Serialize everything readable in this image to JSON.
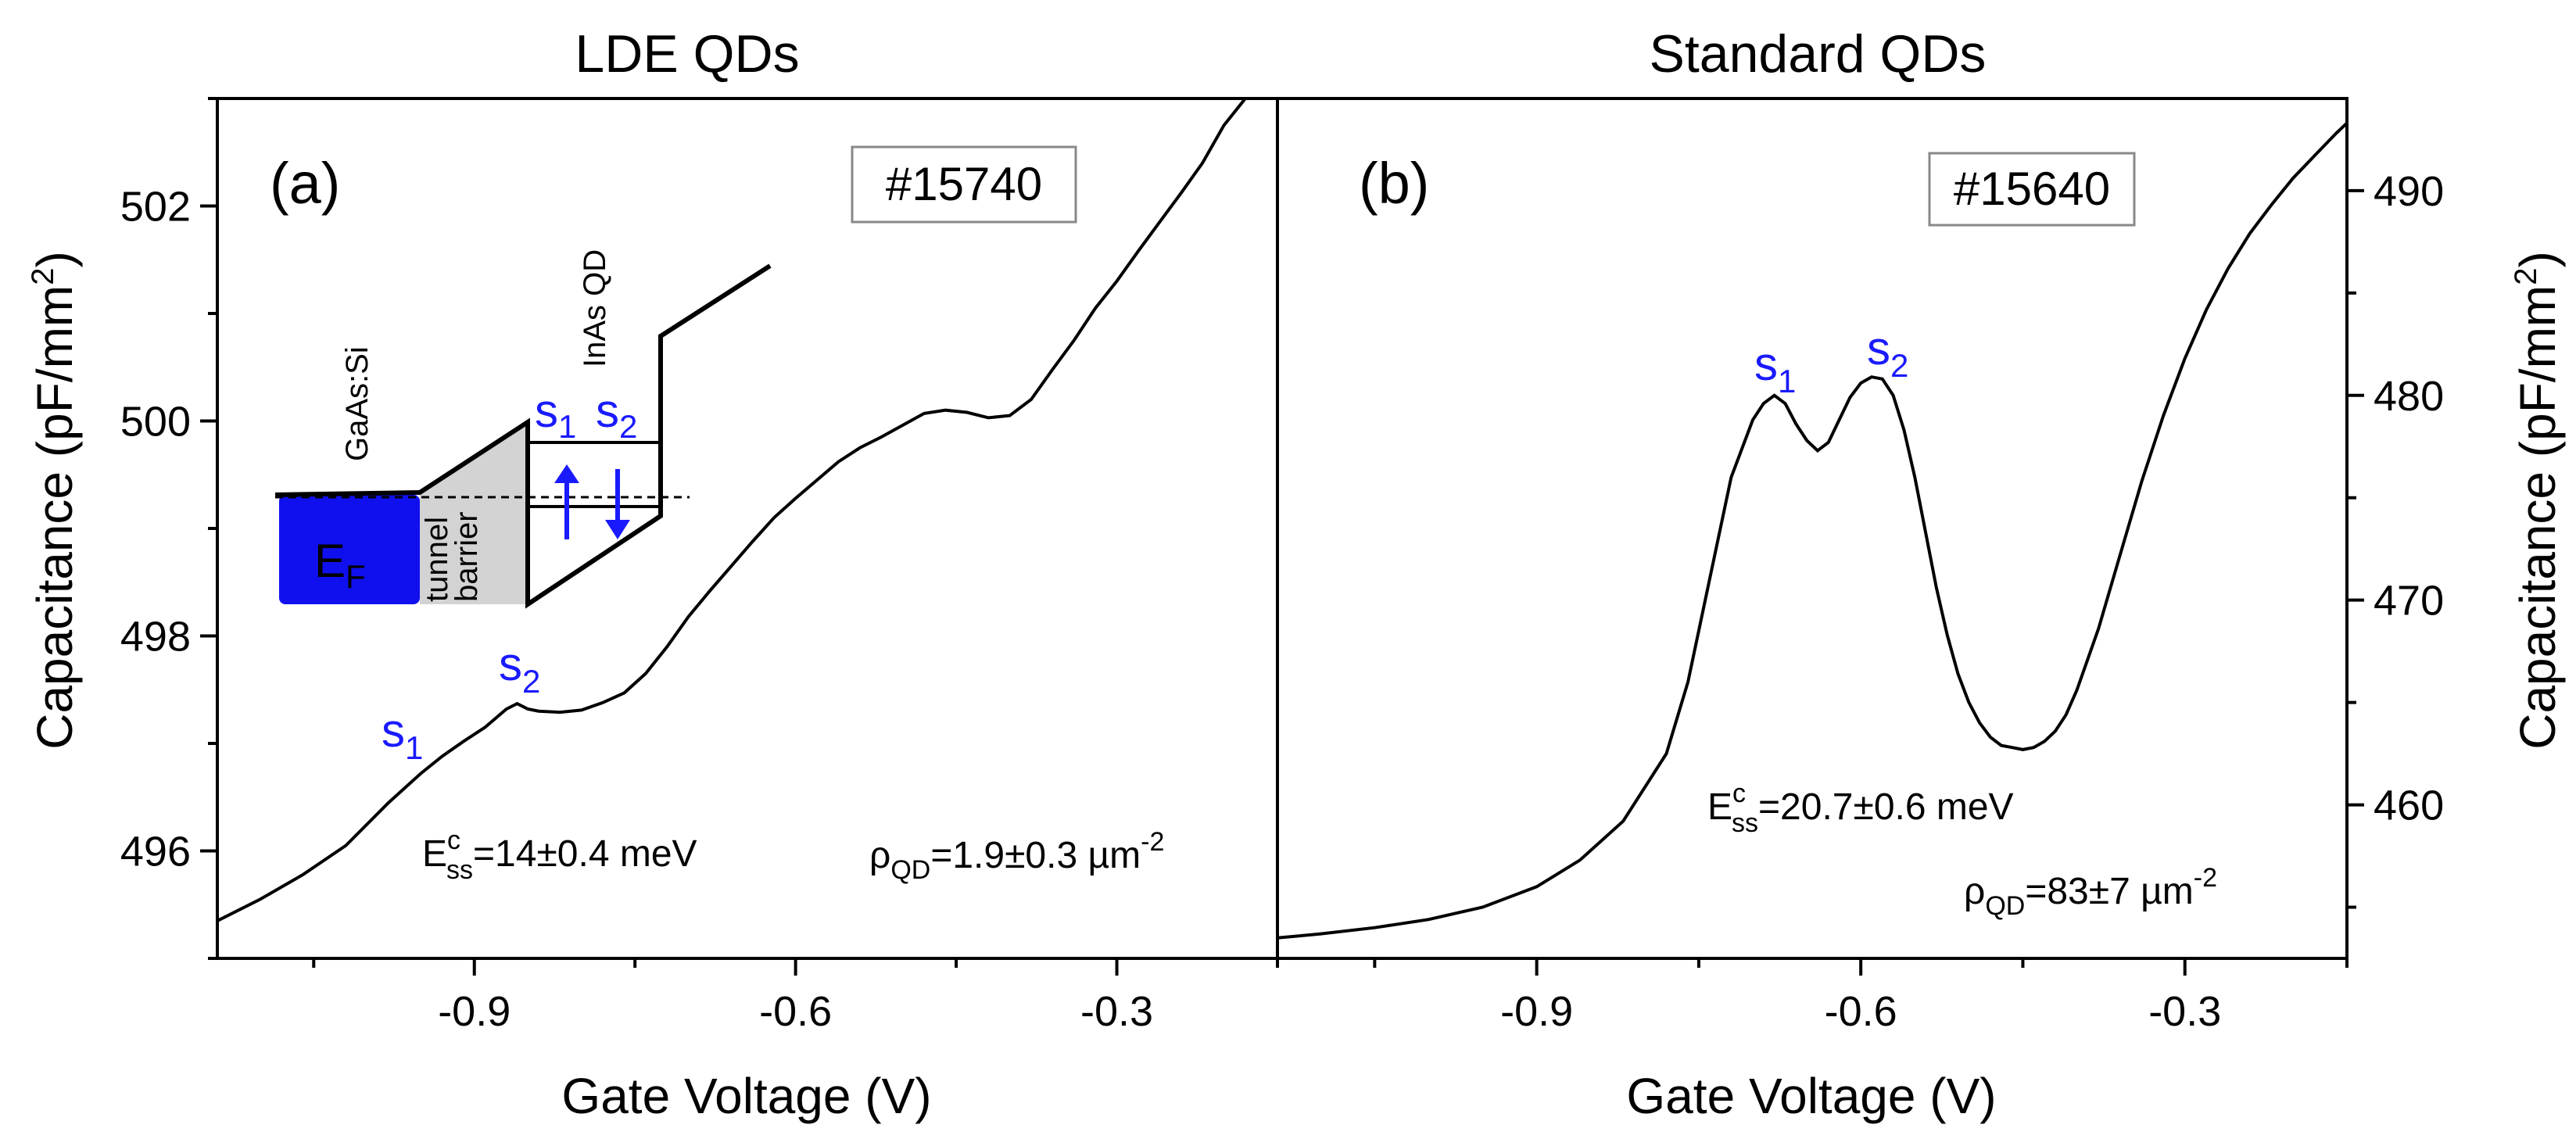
{
  "chart_data": [
    {
      "type": "line",
      "panel_label": "(a)",
      "title": "LDE QDs",
      "sample_id": "#15740",
      "xlabel": "Gate Voltage (V)",
      "ylabel": "Capacitance (pF/mm",
      "ylabel_sup": "2",
      "ylabel_close": ")",
      "xlim": [
        -1.14,
        -0.15
      ],
      "ylim": [
        495,
        503
      ],
      "x_ticks": [
        -0.9,
        -0.6,
        -0.3
      ],
      "x_tick_labels": [
        "-0.9",
        "-0.6",
        "-0.3"
      ],
      "y_ticks": [
        496,
        498,
        500,
        502
      ],
      "y_tick_labels": [
        "496",
        "498",
        "500",
        "502"
      ],
      "series": [
        {
          "name": "LDE QDs capacitance",
          "x": [
            -1.14,
            -1.1,
            -1.06,
            -1.02,
            -0.98,
            -0.95,
            -0.93,
            -0.91,
            -0.89,
            -0.87,
            -0.86,
            -0.85,
            -0.84,
            -0.82,
            -0.8,
            -0.78,
            -0.76,
            -0.74,
            -0.72,
            -0.7,
            -0.68,
            -0.66,
            -0.64,
            -0.62,
            -0.6,
            -0.58,
            -0.56,
            -0.54,
            -0.52,
            -0.5,
            -0.48,
            -0.46,
            -0.44,
            -0.42,
            -0.4,
            -0.38,
            -0.36,
            -0.34,
            -0.32,
            -0.3,
            -0.28,
            -0.26,
            -0.24,
            -0.22,
            -0.2,
            -0.18
          ],
          "values": [
            495.35,
            495.55,
            495.78,
            496.05,
            496.45,
            496.72,
            496.88,
            497.02,
            497.15,
            497.32,
            497.37,
            497.32,
            497.3,
            497.29,
            497.31,
            497.38,
            497.47,
            497.65,
            497.9,
            498.18,
            498.42,
            498.65,
            498.88,
            499.1,
            499.28,
            499.45,
            499.62,
            499.75,
            499.85,
            499.96,
            500.07,
            500.1,
            500.08,
            500.03,
            500.05,
            500.2,
            500.48,
            500.75,
            501.05,
            501.3,
            501.58,
            501.85,
            502.12,
            502.4,
            502.75,
            503.0
          ]
        }
      ],
      "annotations": {
        "peak_s1": "s",
        "peak_s1_sub": "1",
        "peak_s2": "s",
        "peak_s2_sub": "2",
        "charging_energy_main": "E",
        "charging_energy_sup": "c",
        "charging_energy_sub": "ss",
        "charging_energy_value": "=14±0.4 meV",
        "density_main": "ρ",
        "density_sub": "QD",
        "density_value": "=1.9±0.3 µm",
        "density_sup": "-2"
      },
      "inset": {
        "gaas_label": "GaAs:Si",
        "barrier_label_1": "tunnel",
        "barrier_label_2": "barrier",
        "qd_label": "InAs QD",
        "fermi_main": "E",
        "fermi_sub": "F",
        "level_s1": "s",
        "level_s1_sub": "1",
        "level_s2": "s",
        "level_s2_sub": "2",
        "fermi_fill": "#1010ee",
        "barrier_fill": "#d3d3d3",
        "arrow_color": "#1a1aff"
      }
    },
    {
      "type": "line",
      "panel_label": "(b)",
      "title": "Standard QDs",
      "sample_id": "#15640",
      "xlabel": "Gate Voltage (V)",
      "ylabel": "Capacitance (pF/mm",
      "ylabel_sup": "2",
      "ylabel_close": ")",
      "xlim": [
        -1.14,
        -0.15
      ],
      "ylim": [
        452.5,
        494.5
      ],
      "x_ticks": [
        -0.9,
        -0.6,
        -0.3
      ],
      "x_tick_labels": [
        "-0.9",
        "-0.6",
        "-0.3"
      ],
      "y_ticks": [
        460,
        470,
        480,
        490
      ],
      "y_tick_labels": [
        "460",
        "470",
        "480",
        "490"
      ],
      "series": [
        {
          "name": "Standard QDs capacitance",
          "x": [
            -1.14,
            -1.1,
            -1.05,
            -1.0,
            -0.95,
            -0.9,
            -0.86,
            -0.82,
            -0.78,
            -0.76,
            -0.74,
            -0.72,
            -0.7,
            -0.69,
            -0.68,
            -0.67,
            -0.66,
            -0.65,
            -0.64,
            -0.63,
            -0.62,
            -0.61,
            -0.6,
            -0.59,
            -0.58,
            -0.57,
            -0.56,
            -0.55,
            -0.54,
            -0.53,
            -0.52,
            -0.51,
            -0.5,
            -0.49,
            -0.48,
            -0.47,
            -0.46,
            -0.45,
            -0.44,
            -0.43,
            -0.42,
            -0.41,
            -0.4,
            -0.38,
            -0.36,
            -0.34,
            -0.32,
            -0.3,
            -0.28,
            -0.26,
            -0.24,
            -0.22,
            -0.2,
            -0.18,
            -0.16,
            -0.15
          ],
          "values": [
            453.5,
            453.7,
            454.0,
            454.4,
            455.0,
            456.0,
            457.3,
            459.2,
            462.5,
            466.0,
            471.0,
            476.0,
            478.8,
            479.6,
            480.0,
            479.6,
            478.6,
            477.8,
            477.3,
            477.7,
            478.8,
            479.9,
            480.6,
            480.9,
            480.8,
            480.0,
            478.3,
            476.0,
            473.3,
            470.6,
            468.3,
            466.4,
            465.0,
            464.0,
            463.3,
            462.9,
            462.8,
            462.7,
            462.8,
            463.1,
            463.6,
            464.4,
            465.6,
            468.6,
            472.2,
            475.8,
            479.0,
            481.8,
            484.2,
            486.2,
            487.9,
            489.3,
            490.6,
            491.7,
            492.8,
            493.3
          ]
        }
      ],
      "annotations": {
        "peak_s1": "s",
        "peak_s1_sub": "1",
        "peak_s2": "s",
        "peak_s2_sub": "2",
        "charging_energy_main": "E",
        "charging_energy_sup": "c",
        "charging_energy_sub": "ss",
        "charging_energy_value": "=20.7±0.6 meV",
        "density_main": "ρ",
        "density_sub": "QD",
        "density_value": "=83±7 µm",
        "density_sup": "-2"
      }
    }
  ]
}
